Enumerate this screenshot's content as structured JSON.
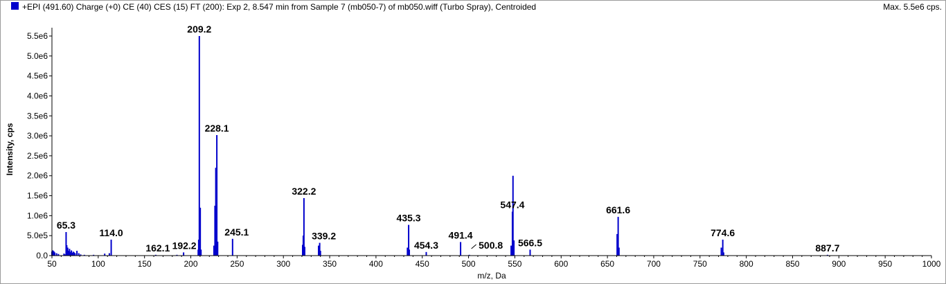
{
  "header": {
    "title": "+EPI (491.60) Charge (+0) CE (40) CES (15) FT (200): Exp 2, 8.547 min from Sample 7 (mb050-7) of mb050.wiff (Turbo Spray), Centroided",
    "max_label": "Max. 5.5e6 cps."
  },
  "colors": {
    "series": "#0000cc",
    "axis": "#000000",
    "leader": "#000000"
  },
  "chart_data": {
    "type": "bar",
    "xlabel": "m/z, Da",
    "ylabel": "Intensity, cps",
    "xlim": [
      50,
      1000
    ],
    "ylim": [
      0,
      5500000.0
    ],
    "x_ticks": [
      50,
      100,
      150,
      200,
      250,
      300,
      350,
      400,
      450,
      500,
      550,
      600,
      650,
      700,
      750,
      800,
      850,
      900,
      950,
      1000
    ],
    "y_ticks": [
      {
        "value": 0,
        "label": "0.0"
      },
      {
        "value": 500000,
        "label": "5.0e5"
      },
      {
        "value": 1000000,
        "label": "1.0e6"
      },
      {
        "value": 1500000,
        "label": "1.5e6"
      },
      {
        "value": 2000000,
        "label": "2.0e6"
      },
      {
        "value": 2500000,
        "label": "2.5e6"
      },
      {
        "value": 3000000,
        "label": "3.0e6"
      },
      {
        "value": 3500000,
        "label": "3.5e6"
      },
      {
        "value": 4000000,
        "label": "4.0e6"
      },
      {
        "value": 4500000,
        "label": "4.5e6"
      },
      {
        "value": 5000000,
        "label": "5.0e6"
      },
      {
        "value": 5500000,
        "label": "5.5e6"
      }
    ],
    "peaks": [
      [
        50,
        100000
      ],
      [
        51,
        130000
      ],
      [
        52,
        110000
      ],
      [
        53,
        80000
      ],
      [
        55,
        60000
      ],
      [
        57,
        40000
      ],
      [
        63,
        50000
      ],
      [
        64,
        30000
      ],
      [
        65.3,
        590000
      ],
      [
        66,
        260000
      ],
      [
        67,
        200000
      ],
      [
        68,
        120000
      ],
      [
        69,
        170000
      ],
      [
        70,
        90000
      ],
      [
        71,
        130000
      ],
      [
        72,
        70000
      ],
      [
        73,
        100000
      ],
      [
        74,
        80000
      ],
      [
        75,
        60000
      ],
      [
        77,
        120000
      ],
      [
        79,
        60000
      ],
      [
        81,
        30000
      ],
      [
        85,
        20000
      ],
      [
        95,
        20000
      ],
      [
        107,
        50000
      ],
      [
        112,
        60000
      ],
      [
        114.0,
        400000
      ],
      [
        162.1,
        20000
      ],
      [
        185,
        20000
      ],
      [
        192.2,
        80000
      ],
      [
        208,
        150000
      ],
      [
        208.5,
        400000
      ],
      [
        209.2,
        5500000
      ],
      [
        210.2,
        1200000
      ],
      [
        211,
        150000
      ],
      [
        225,
        250000
      ],
      [
        226.1,
        1250000
      ],
      [
        227,
        2200000
      ],
      [
        228.1,
        3020000
      ],
      [
        229,
        350000
      ],
      [
        245.1,
        420000
      ],
      [
        320.8,
        270000
      ],
      [
        321.5,
        500000
      ],
      [
        322.2,
        1440000
      ],
      [
        323,
        220000
      ],
      [
        338,
        250000
      ],
      [
        339.2,
        320000
      ],
      [
        340,
        120000
      ],
      [
        434,
        200000
      ],
      [
        435.3,
        770000
      ],
      [
        436,
        150000
      ],
      [
        454.3,
        90000
      ],
      [
        491.4,
        340000
      ],
      [
        500.8,
        20000
      ],
      [
        546,
        250000
      ],
      [
        547.4,
        1100000
      ],
      [
        548,
        2000000
      ],
      [
        549,
        380000
      ],
      [
        566.5,
        150000
      ],
      [
        660.5,
        540000
      ],
      [
        661.6,
        970000
      ],
      [
        662.5,
        200000
      ],
      [
        773,
        200000
      ],
      [
        774.6,
        400000
      ],
      [
        775.5,
        80000
      ],
      [
        887.7,
        20000
      ]
    ],
    "labels": [
      {
        "text": "65.3",
        "x": 65.3,
        "y": 590000
      },
      {
        "text": "114.0",
        "x": 114.0,
        "y": 400000
      },
      {
        "text": "162.1",
        "x": 162.1,
        "y": 20000
      },
      {
        "text": "192.2",
        "x": 192.2,
        "y": 80000
      },
      {
        "text": "209.2",
        "x": 209.2,
        "y": 5500000
      },
      {
        "text": "228.1",
        "x": 228.1,
        "y": 3020000
      },
      {
        "text": "245.1",
        "x": 245.1,
        "y": 420000
      },
      {
        "text": "322.2",
        "x": 322.2,
        "y": 1440000
      },
      {
        "text": "339.2",
        "x": 339.2,
        "y": 320000
      },
      {
        "text": "435.3",
        "x": 435.3,
        "y": 770000
      },
      {
        "text": "454.3",
        "x": 454.3,
        "y": 90000
      },
      {
        "text": "491.4",
        "x": 491.4,
        "y": 340000
      },
      {
        "text": "500.8",
        "x": 500.8,
        "y": 20000
      },
      {
        "text": "547.4",
        "x": 547.4,
        "y": 1100000
      },
      {
        "text": "566.5",
        "x": 566.5,
        "y": 150000
      },
      {
        "text": "661.6",
        "x": 661.6,
        "y": 970000
      },
      {
        "text": "774.6",
        "x": 774.6,
        "y": 400000
      },
      {
        "text": "887.7",
        "x": 887.7,
        "y": 20000
      }
    ]
  }
}
